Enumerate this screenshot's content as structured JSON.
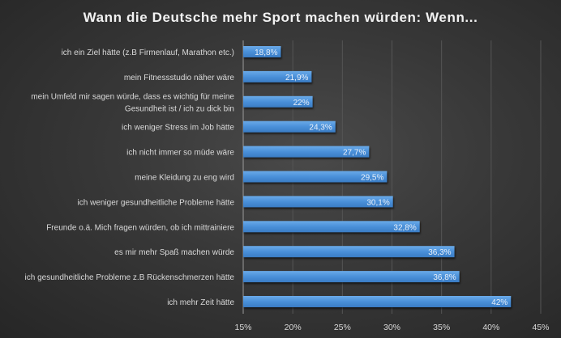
{
  "chart_data": {
    "type": "bar",
    "orientation": "horizontal",
    "title": "Wann die Deutsche mehr Sport machen würden: Wenn...",
    "xlabel": "",
    "ylabel": "",
    "xlim": [
      15,
      45
    ],
    "x_ticks": [
      "15%",
      "20%",
      "25%",
      "30%",
      "35%",
      "40%",
      "45%"
    ],
    "x_tick_values": [
      15,
      20,
      25,
      30,
      35,
      40,
      45
    ],
    "grid": true,
    "bar_color": "#4a90d9",
    "categories": [
      [
        "ich ein Ziel hätte (z.B Firmenlauf, Marathon etc.)"
      ],
      [
        "mein Fitnessstudio näher wäre"
      ],
      [
        "mein Umfeld mir sagen würde, dass es wichtig für meine",
        "Gesundheit ist / ich zu dick bin"
      ],
      [
        "ich weniger Stress im Job hätte"
      ],
      [
        "ich nicht immer so müde wäre"
      ],
      [
        "meine Kleidung zu eng wird"
      ],
      [
        "ich weniger gesundheitliche Probleme hätte"
      ],
      [
        "Freunde o.ä. Mich fragen würden, ob ich mittrainiere"
      ],
      [
        "es mir mehr Spaß machen würde"
      ],
      [
        "ich gesundheitliche Probleme z.B Rückenschmerzen hätte"
      ],
      [
        "ich mehr Zeit hätte"
      ]
    ],
    "values": [
      18.8,
      21.9,
      22,
      24.3,
      27.7,
      29.5,
      30.1,
      32.8,
      36.3,
      36.8,
      42
    ],
    "data_labels": [
      "18,8%",
      "21,9%",
      "22%",
      "24,3%",
      "27,7%",
      "29,5%",
      "30,1%",
      "32,8%",
      "36,3%",
      "36,8%",
      "42%"
    ]
  }
}
